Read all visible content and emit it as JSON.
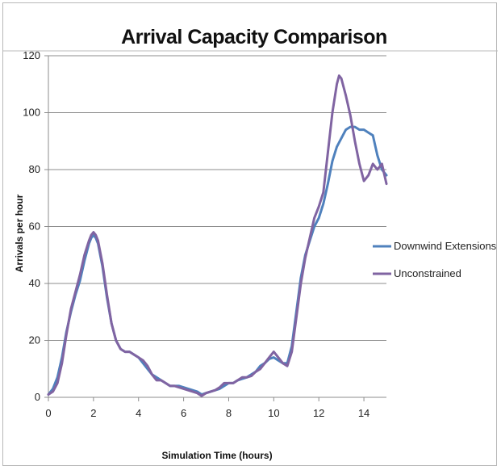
{
  "chart_data": {
    "type": "line",
    "title": "Arrival Capacity Comparison",
    "xlabel": "Simulation Time (hours)",
    "ylabel": "Arrivals per hour",
    "xlim": [
      0,
      15
    ],
    "ylim": [
      0,
      120
    ],
    "xticks": [
      0,
      2,
      4,
      6,
      8,
      10,
      12,
      14
    ],
    "yticks": [
      0,
      20,
      40,
      60,
      80,
      100,
      120
    ],
    "grid": "horizontal",
    "legend_position": "right",
    "series": [
      {
        "name": "Downwind Extensions",
        "color": "#4f81bd",
        "x": [
          0,
          0.2,
          0.4,
          0.6,
          0.8,
          1.0,
          1.2,
          1.4,
          1.6,
          1.8,
          1.9,
          2.0,
          2.1,
          2.2,
          2.4,
          2.6,
          2.8,
          3.0,
          3.2,
          3.4,
          3.6,
          3.8,
          4.0,
          4.2,
          4.4,
          4.6,
          4.8,
          5.0,
          5.2,
          5.4,
          5.6,
          5.8,
          6.0,
          6.2,
          6.4,
          6.6,
          6.8,
          7.0,
          7.2,
          7.4,
          7.6,
          7.8,
          8.0,
          8.2,
          8.4,
          8.6,
          8.8,
          9.0,
          9.2,
          9.4,
          9.6,
          9.8,
          10.0,
          10.2,
          10.4,
          10.6,
          10.8,
          11.0,
          11.2,
          11.4,
          11.6,
          11.8,
          12.0,
          12.2,
          12.4,
          12.6,
          12.8,
          13.0,
          13.2,
          13.4,
          13.6,
          13.8,
          14.0,
          14.2,
          14.4,
          14.6,
          14.8,
          15.0
        ],
        "y": [
          1,
          3,
          7,
          14,
          23,
          30,
          36,
          41,
          48,
          54,
          56,
          57,
          56,
          54,
          46,
          35,
          26,
          20,
          17,
          16,
          16,
          15,
          14,
          12,
          10,
          8,
          7,
          6,
          5,
          4,
          4,
          4,
          3.5,
          3,
          2.5,
          2,
          1,
          1.5,
          2,
          2.5,
          3,
          4,
          5,
          5,
          6,
          6.5,
          7,
          8,
          9,
          11,
          12,
          13.5,
          14,
          13,
          12,
          12,
          18,
          30,
          42,
          50,
          55,
          60,
          63,
          68,
          75,
          83,
          88,
          91,
          94,
          95,
          95,
          94,
          94,
          93,
          92,
          85,
          80,
          78
        ]
      },
      {
        "name": "Unconstrained",
        "color": "#8064a2",
        "x": [
          0,
          0.2,
          0.4,
          0.6,
          0.8,
          1.0,
          1.2,
          1.4,
          1.6,
          1.8,
          1.9,
          2.0,
          2.1,
          2.2,
          2.4,
          2.6,
          2.8,
          3.0,
          3.2,
          3.4,
          3.6,
          3.8,
          4.0,
          4.2,
          4.4,
          4.6,
          4.8,
          5.0,
          5.2,
          5.4,
          5.6,
          5.8,
          6.0,
          6.2,
          6.4,
          6.6,
          6.8,
          7.0,
          7.2,
          7.4,
          7.6,
          7.8,
          8.0,
          8.2,
          8.4,
          8.6,
          8.8,
          9.0,
          9.2,
          9.4,
          9.6,
          9.8,
          10.0,
          10.2,
          10.4,
          10.6,
          10.8,
          11.0,
          11.2,
          11.4,
          11.6,
          11.8,
          12.0,
          12.2,
          12.4,
          12.6,
          12.8,
          12.9,
          13.0,
          13.2,
          13.4,
          13.6,
          13.8,
          14.0,
          14.2,
          14.4,
          14.6,
          14.8,
          15.0
        ],
        "y": [
          1,
          2,
          5,
          12,
          22,
          31,
          37,
          43,
          50,
          55,
          57,
          58,
          57,
          55,
          47,
          36,
          26,
          20,
          17,
          16,
          16,
          15,
          14,
          13,
          11,
          8,
          6,
          6,
          5,
          4,
          4,
          3.5,
          3,
          2.5,
          2,
          1.5,
          0.5,
          1.5,
          2,
          2.5,
          3.5,
          5,
          5,
          5,
          6,
          7,
          7,
          7.5,
          9,
          10,
          12,
          14,
          16,
          14,
          12,
          11,
          16,
          28,
          40,
          49,
          56,
          63,
          67,
          72,
          86,
          100,
          110,
          113,
          112,
          106,
          99,
          90,
          82,
          76,
          78,
          82,
          80,
          82,
          75
        ]
      }
    ]
  }
}
